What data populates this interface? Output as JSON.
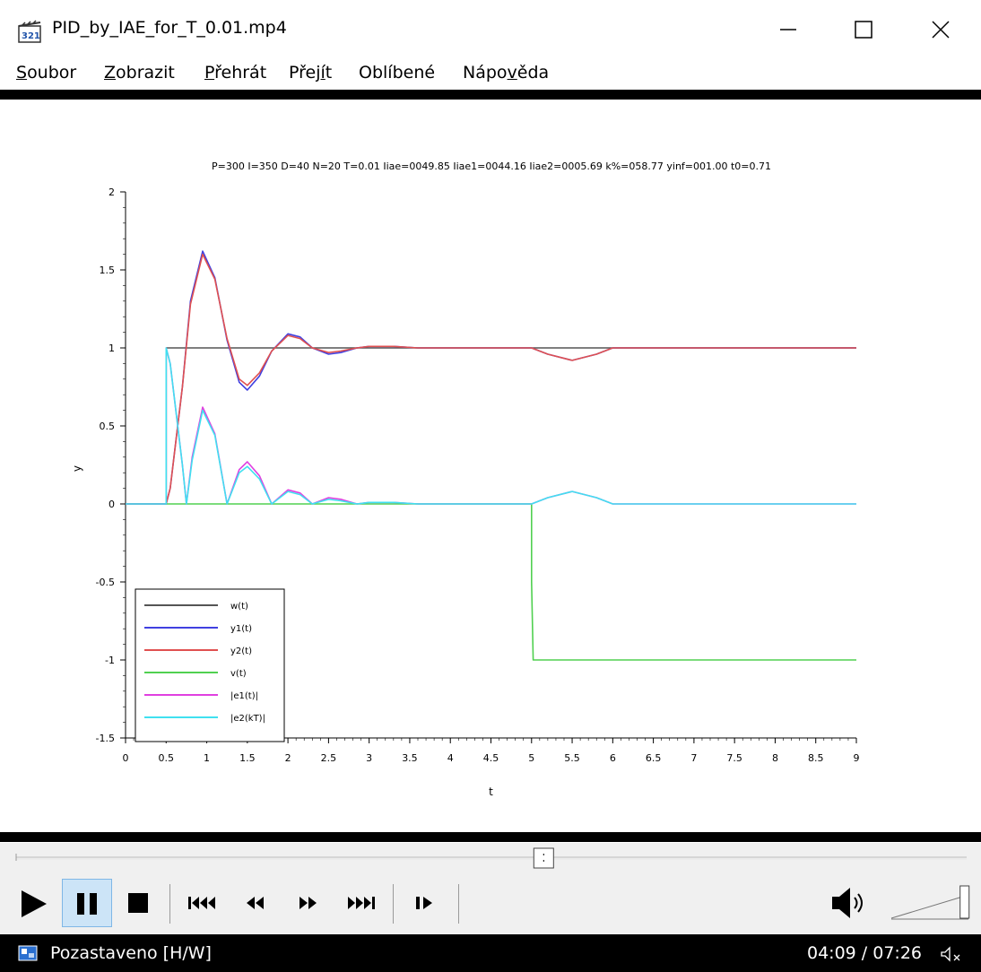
{
  "window": {
    "title": "PID_by_IAE_for_T_0.01.mp4",
    "app_icon": "film-clapper-icon"
  },
  "menu": [
    {
      "label": "Soubor",
      "accel_index": 0
    },
    {
      "label": "Zobrazit",
      "accel_index": 0
    },
    {
      "label": "Přehrát",
      "accel_index": 0
    },
    {
      "label": "Přejít",
      "accel_index": 4
    },
    {
      "label": "Oblíbené",
      "accel_index": -1
    },
    {
      "label": "Nápověda",
      "accel_index": 4
    }
  ],
  "plot": {
    "header": "P=300  I=350  D=40  N=20  T=0.01  Iiae=0049.85  Iiae1=0044.16  Iiae2=0005.69  k%=058.77  yinf=001.00  t0=0.71"
  },
  "chart_data": {
    "type": "line",
    "xlabel": "t",
    "ylabel": "y",
    "xlim": [
      0,
      9
    ],
    "ylim": [
      -1.5,
      2
    ],
    "x_ticks": [
      "0",
      "0.5",
      "1",
      "1.5",
      "2",
      "2.5",
      "3",
      "3.5",
      "4",
      "4.5",
      "5",
      "5.5",
      "6",
      "6.5",
      "7",
      "7.5",
      "8",
      "8.5",
      "9"
    ],
    "y_ticks": [
      "-1.5",
      "-1",
      "-0.5",
      "0",
      "0.5",
      "1",
      "1.5",
      "2"
    ],
    "legend_position": "bottom-left",
    "grid": false,
    "series": [
      {
        "name": "w(t)",
        "color": "#555555",
        "points": [
          [
            0,
            0
          ],
          [
            0.5,
            0
          ],
          [
            0.5,
            1
          ],
          [
            9,
            1
          ]
        ]
      },
      {
        "name": "y1(t)",
        "color": "#4040e0",
        "points": [
          [
            0,
            0
          ],
          [
            0.5,
            0
          ],
          [
            0.55,
            0.1
          ],
          [
            0.7,
            0.75
          ],
          [
            0.8,
            1.3
          ],
          [
            0.95,
            1.62
          ],
          [
            1.1,
            1.45
          ],
          [
            1.25,
            1.05
          ],
          [
            1.4,
            0.78
          ],
          [
            1.5,
            0.73
          ],
          [
            1.65,
            0.82
          ],
          [
            1.8,
            0.98
          ],
          [
            2.0,
            1.09
          ],
          [
            2.15,
            1.07
          ],
          [
            2.3,
            1.0
          ],
          [
            2.5,
            0.96
          ],
          [
            2.65,
            0.97
          ],
          [
            2.85,
            1.0
          ],
          [
            3.0,
            1.01
          ],
          [
            3.3,
            1.01
          ],
          [
            3.6,
            1.0
          ],
          [
            5.0,
            1.0
          ],
          [
            5.2,
            0.96
          ],
          [
            5.5,
            0.92
          ],
          [
            5.8,
            0.96
          ],
          [
            6.0,
            1.0
          ],
          [
            9,
            1.0
          ]
        ]
      },
      {
        "name": "y2(t)",
        "color": "#e05050",
        "points": [
          [
            0,
            0
          ],
          [
            0.5,
            0
          ],
          [
            0.55,
            0.1
          ],
          [
            0.7,
            0.75
          ],
          [
            0.8,
            1.28
          ],
          [
            0.95,
            1.6
          ],
          [
            1.1,
            1.44
          ],
          [
            1.25,
            1.06
          ],
          [
            1.4,
            0.8
          ],
          [
            1.5,
            0.76
          ],
          [
            1.65,
            0.84
          ],
          [
            1.8,
            0.98
          ],
          [
            2.0,
            1.08
          ],
          [
            2.15,
            1.06
          ],
          [
            2.3,
            1.0
          ],
          [
            2.5,
            0.97
          ],
          [
            2.65,
            0.98
          ],
          [
            2.85,
            1.0
          ],
          [
            3.0,
            1.01
          ],
          [
            3.3,
            1.01
          ],
          [
            3.6,
            1.0
          ],
          [
            5.0,
            1.0
          ],
          [
            5.2,
            0.96
          ],
          [
            5.5,
            0.92
          ],
          [
            5.8,
            0.96
          ],
          [
            6.0,
            1.0
          ],
          [
            9,
            1.0
          ]
        ]
      },
      {
        "name": "v(t)",
        "color": "#50d050",
        "points": [
          [
            0,
            0
          ],
          [
            5.0,
            0
          ],
          [
            5.0,
            -0.5
          ],
          [
            5.02,
            -1.0
          ],
          [
            9,
            -1.0
          ]
        ]
      },
      {
        "name": "|e1(t)|",
        "color": "#e040e0",
        "points": [
          [
            0,
            0
          ],
          [
            0.5,
            0
          ],
          [
            0.5,
            1.0
          ],
          [
            0.55,
            0.9
          ],
          [
            0.7,
            0.25
          ],
          [
            0.75,
            0.0
          ],
          [
            0.82,
            0.3
          ],
          [
            0.95,
            0.62
          ],
          [
            1.1,
            0.45
          ],
          [
            1.25,
            0.0
          ],
          [
            1.4,
            0.22
          ],
          [
            1.5,
            0.27
          ],
          [
            1.65,
            0.18
          ],
          [
            1.8,
            0.0
          ],
          [
            2.0,
            0.09
          ],
          [
            2.15,
            0.07
          ],
          [
            2.3,
            0.0
          ],
          [
            2.5,
            0.04
          ],
          [
            2.65,
            0.03
          ],
          [
            2.85,
            0.0
          ],
          [
            3.0,
            0.01
          ],
          [
            3.3,
            0.01
          ],
          [
            3.6,
            0.0
          ],
          [
            5.0,
            0.0
          ],
          [
            5.2,
            0.04
          ],
          [
            5.5,
            0.08
          ],
          [
            5.8,
            0.04
          ],
          [
            6.0,
            0.0
          ],
          [
            9,
            0.0
          ]
        ]
      },
      {
        "name": "|e2(kT)|",
        "color": "#40e0f0",
        "points": [
          [
            0,
            0
          ],
          [
            0.5,
            0
          ],
          [
            0.5,
            1.0
          ],
          [
            0.55,
            0.9
          ],
          [
            0.7,
            0.25
          ],
          [
            0.75,
            0.0
          ],
          [
            0.82,
            0.28
          ],
          [
            0.95,
            0.6
          ],
          [
            1.1,
            0.44
          ],
          [
            1.25,
            0.0
          ],
          [
            1.4,
            0.2
          ],
          [
            1.5,
            0.24
          ],
          [
            1.65,
            0.16
          ],
          [
            1.8,
            0.0
          ],
          [
            2.0,
            0.08
          ],
          [
            2.15,
            0.06
          ],
          [
            2.3,
            0.0
          ],
          [
            2.5,
            0.03
          ],
          [
            2.65,
            0.02
          ],
          [
            2.85,
            0.0
          ],
          [
            3.0,
            0.01
          ],
          [
            3.3,
            0.01
          ],
          [
            3.6,
            0.0
          ],
          [
            5.0,
            0.0
          ],
          [
            5.2,
            0.04
          ],
          [
            5.5,
            0.08
          ],
          [
            5.8,
            0.04
          ],
          [
            6.0,
            0.0
          ],
          [
            9,
            0.0
          ]
        ]
      }
    ]
  },
  "player": {
    "seek_fraction": 0.555,
    "volume_fraction": 0.95,
    "status": "Pozastaveno [H/W]",
    "time": "04:09 / 07:26",
    "controls": [
      "play-icon",
      "pause-icon",
      "stop-icon",
      "skip-to-start-icon",
      "rewind-icon",
      "fast-forward-icon",
      "skip-to-end-icon",
      "frame-step-icon",
      "speaker-icon",
      "mute-indicator-icon"
    ]
  }
}
